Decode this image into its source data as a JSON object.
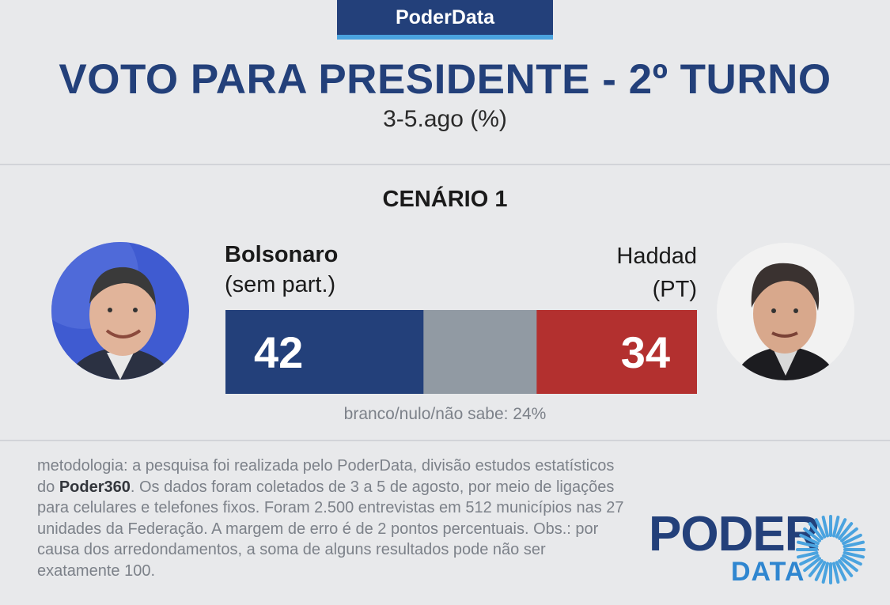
{
  "brand_tab": "PoderData",
  "title": "VOTO PARA PRESIDENTE - 2º TURNO",
  "subtitle": "3-5.ago (%)",
  "scenario": "CENÁRIO 1",
  "candidates": {
    "left": {
      "name": "Bolsonaro",
      "party": "(sem part.)",
      "value_label": "42"
    },
    "right": {
      "name": "Haddad",
      "party": "(PT)",
      "value_label": "34"
    }
  },
  "footnote": "branco/nulo/não sabe: 24%",
  "methodology": {
    "part1": "metodologia: a pesquisa foi realizada pelo PoderData, divisão estudos estatísticos do ",
    "bold": "Poder360",
    "part2": ". Os dados foram coletados de 3 a 5 de agosto, por meio de ligações para celulares e telefones fixos. Foram 2.500 entrevistas em 512 municípios nas 27 unidades da Federação. A margem de erro é de 2 pontos percentuais. Obs.: por causa dos arredondamentos, a soma de alguns resultados pode não ser exatamente 100."
  },
  "logo": {
    "line1": "PODER",
    "line2": "DATA"
  },
  "colors": {
    "brand_blue": "#23407a",
    "accent_blue": "#4aa3df",
    "bolsonaro": "#23407a",
    "undecided": "#919aa3",
    "haddad": "#b3302f"
  },
  "chart_data": {
    "type": "bar",
    "orientation": "horizontal-stacked",
    "categories": [
      "Bolsonaro (sem part.)",
      "branco/nulo/não sabe",
      "Haddad (PT)"
    ],
    "values": [
      42,
      24,
      34
    ],
    "unit": "%",
    "title": "VOTO PARA PRESIDENTE - 2º TURNO",
    "subtitle": "3-5.ago (%)"
  }
}
